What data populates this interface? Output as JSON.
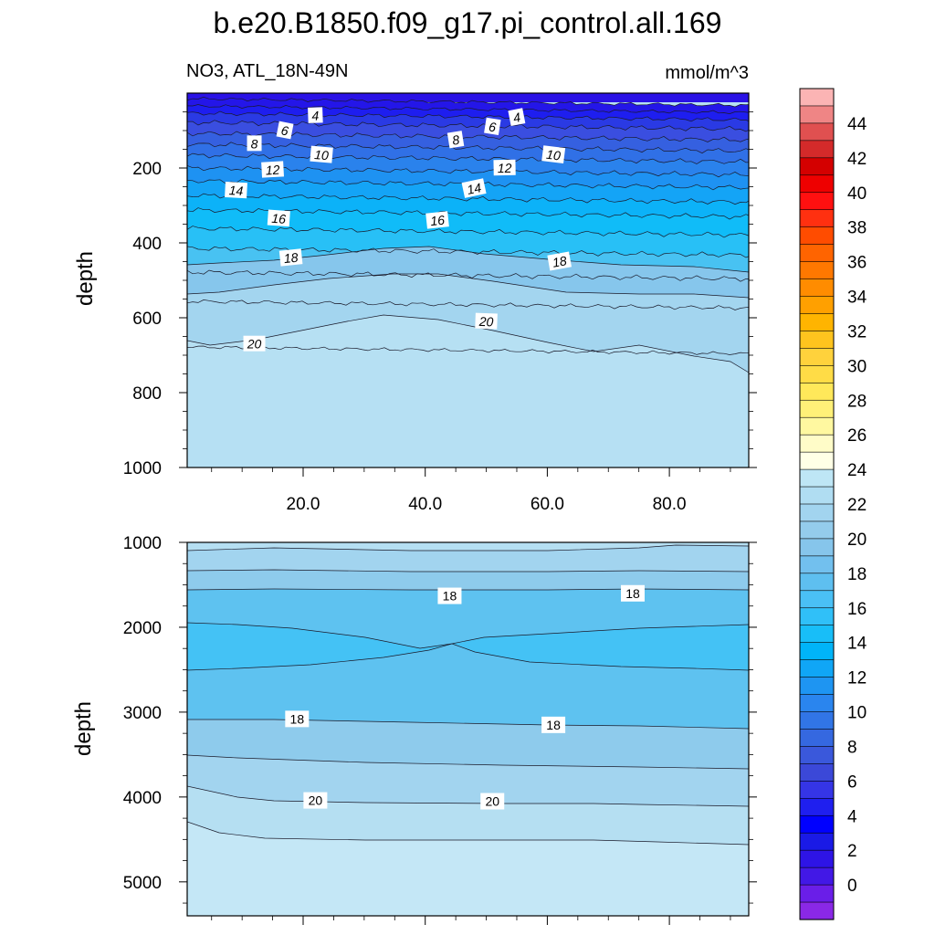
{
  "title": "b.e20.B1850.f09_g17.pi_control.all.169",
  "subtitle_left": "NO3, ATL_18N-49N",
  "subtitle_right": "mmol/m^3",
  "chart_data": [
    {
      "type": "contour",
      "panel": "upper",
      "ylabel": "depth",
      "xlim": [
        1,
        93
      ],
      "ylim": [
        1000,
        0
      ],
      "x_tick_labels": [
        "20.0",
        "40.0",
        "60.0",
        "80.0"
      ],
      "x_ticks": [
        20,
        40,
        60,
        80
      ],
      "y_tick_labels": [
        "200",
        "400",
        "600",
        "800",
        "1000"
      ],
      "y_ticks": [
        200,
        400,
        600,
        800,
        1000
      ],
      "contour_labels": [
        {
          "text": "4",
          "x": 22,
          "y": 60
        },
        {
          "text": "4",
          "x": 55,
          "y": 65
        },
        {
          "text": "6",
          "x": 17,
          "y": 100
        },
        {
          "text": "6",
          "x": 51,
          "y": 90
        },
        {
          "text": "8",
          "x": 12,
          "y": 135
        },
        {
          "text": "8",
          "x": 45,
          "y": 125
        },
        {
          "text": "10",
          "x": 23,
          "y": 165
        },
        {
          "text": "10",
          "x": 61,
          "y": 165
        },
        {
          "text": "12",
          "x": 15,
          "y": 205
        },
        {
          "text": "12",
          "x": 53,
          "y": 200
        },
        {
          "text": "14",
          "x": 9,
          "y": 260
        },
        {
          "text": "14",
          "x": 48,
          "y": 255
        },
        {
          "text": "16",
          "x": 16,
          "y": 335
        },
        {
          "text": "16",
          "x": 42,
          "y": 340
        },
        {
          "text": "18",
          "x": 18,
          "y": 440
        },
        {
          "text": "18",
          "x": 62,
          "y": 450
        },
        {
          "text": "20",
          "x": 12,
          "y": 670
        },
        {
          "text": "20",
          "x": 50,
          "y": 610
        }
      ]
    },
    {
      "type": "contour",
      "panel": "lower",
      "ylabel": "depth",
      "xlim": [
        1,
        93
      ],
      "ylim": [
        5400,
        1000
      ],
      "x_ticks": [
        20,
        40,
        60,
        80
      ],
      "y_tick_labels": [
        "1000",
        "2000",
        "3000",
        "4000",
        "5000"
      ],
      "y_ticks": [
        1000,
        2000,
        3000,
        4000,
        5000
      ],
      "contour_labels": [
        {
          "text": "18",
          "x": 44,
          "y": 1630
        },
        {
          "text": "18",
          "x": 74,
          "y": 1600
        },
        {
          "text": "18",
          "x": 19,
          "y": 3080
        },
        {
          "text": "18",
          "x": 61,
          "y": 3150
        },
        {
          "text": "20",
          "x": 22,
          "y": 4040
        },
        {
          "text": "20",
          "x": 51,
          "y": 4050
        }
      ]
    }
  ],
  "colorbar": {
    "labels": [
      "44",
      "42",
      "40",
      "38",
      "36",
      "34",
      "32",
      "30",
      "28",
      "26",
      "24",
      "22",
      "20",
      "18",
      "16",
      "14",
      "12",
      "10",
      "8",
      "6",
      "4",
      "2",
      "0"
    ],
    "colors": [
      "#fbb4b4",
      "#ef8585",
      "#e05050",
      "#d42a2a",
      "#d40000",
      "#ee0000",
      "#ff1010",
      "#ff3010",
      "#ff4c00",
      "#ff6400",
      "#ff7800",
      "#ff8c00",
      "#ffa000",
      "#ffb400",
      "#ffc41e",
      "#ffd23c",
      "#ffdc46",
      "#ffe85a",
      "#fff078",
      "#fff8a0",
      "#fffcc8",
      "#ffffe6",
      "#bee6f5",
      "#b0ddf2",
      "#a2d4ef",
      "#94ccec",
      "#86c5eb",
      "#72c0ee",
      "#5ebff0",
      "#4ac0f5",
      "#30c0f8",
      "#18bef8",
      "#00b4f8",
      "#10a6f6",
      "#1e95f2",
      "#2a85ee",
      "#3175e6",
      "#3568e0",
      "#3a58db",
      "#3b48d8",
      "#3535e6",
      "#1f1fef",
      "#0000ff",
      "#1a1ae6",
      "#2e14e6",
      "#4218e6",
      "#6a1ee8",
      "#8a28e6"
    ]
  }
}
